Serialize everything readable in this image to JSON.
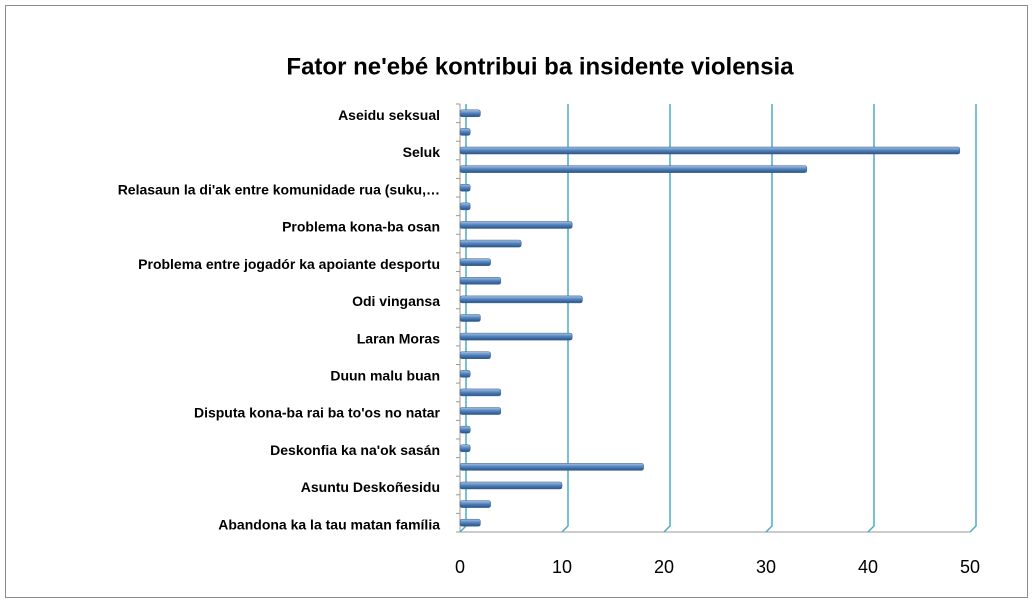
{
  "chart_data": {
    "type": "hbar",
    "title": "Fator ne'ebé kontribui ba insidente violensia",
    "categories": [
      "Aseidu seksual",
      null,
      "Seluk",
      null,
      "Relasaun la di'ak entre komunidade rua (suku,…",
      null,
      "Problema kona-ba osan",
      null,
      "Problema entre jogadór ka apoiante desportu",
      null,
      "Odi vingansa",
      null,
      "Laran Moras",
      null,
      "Duun malu buan",
      null,
      "Disputa kona-ba rai ba to'os no natar",
      null,
      "Deskonfia ka na'ok sasán",
      null,
      "Asuntu Deskoñesidu",
      null,
      "Abandona ka la tau matan família"
    ],
    "values": [
      2,
      1,
      49,
      34,
      1,
      1,
      11,
      6,
      3,
      4,
      12,
      2,
      11,
      3,
      1,
      4,
      4,
      1,
      1,
      18,
      10,
      3,
      2
    ],
    "color": "#4f81bd",
    "xlim": [
      0,
      50
    ],
    "xticks": [
      0,
      10,
      20,
      30,
      40,
      50
    ],
    "grid": true,
    "grid_color": "#4bacc6"
  }
}
